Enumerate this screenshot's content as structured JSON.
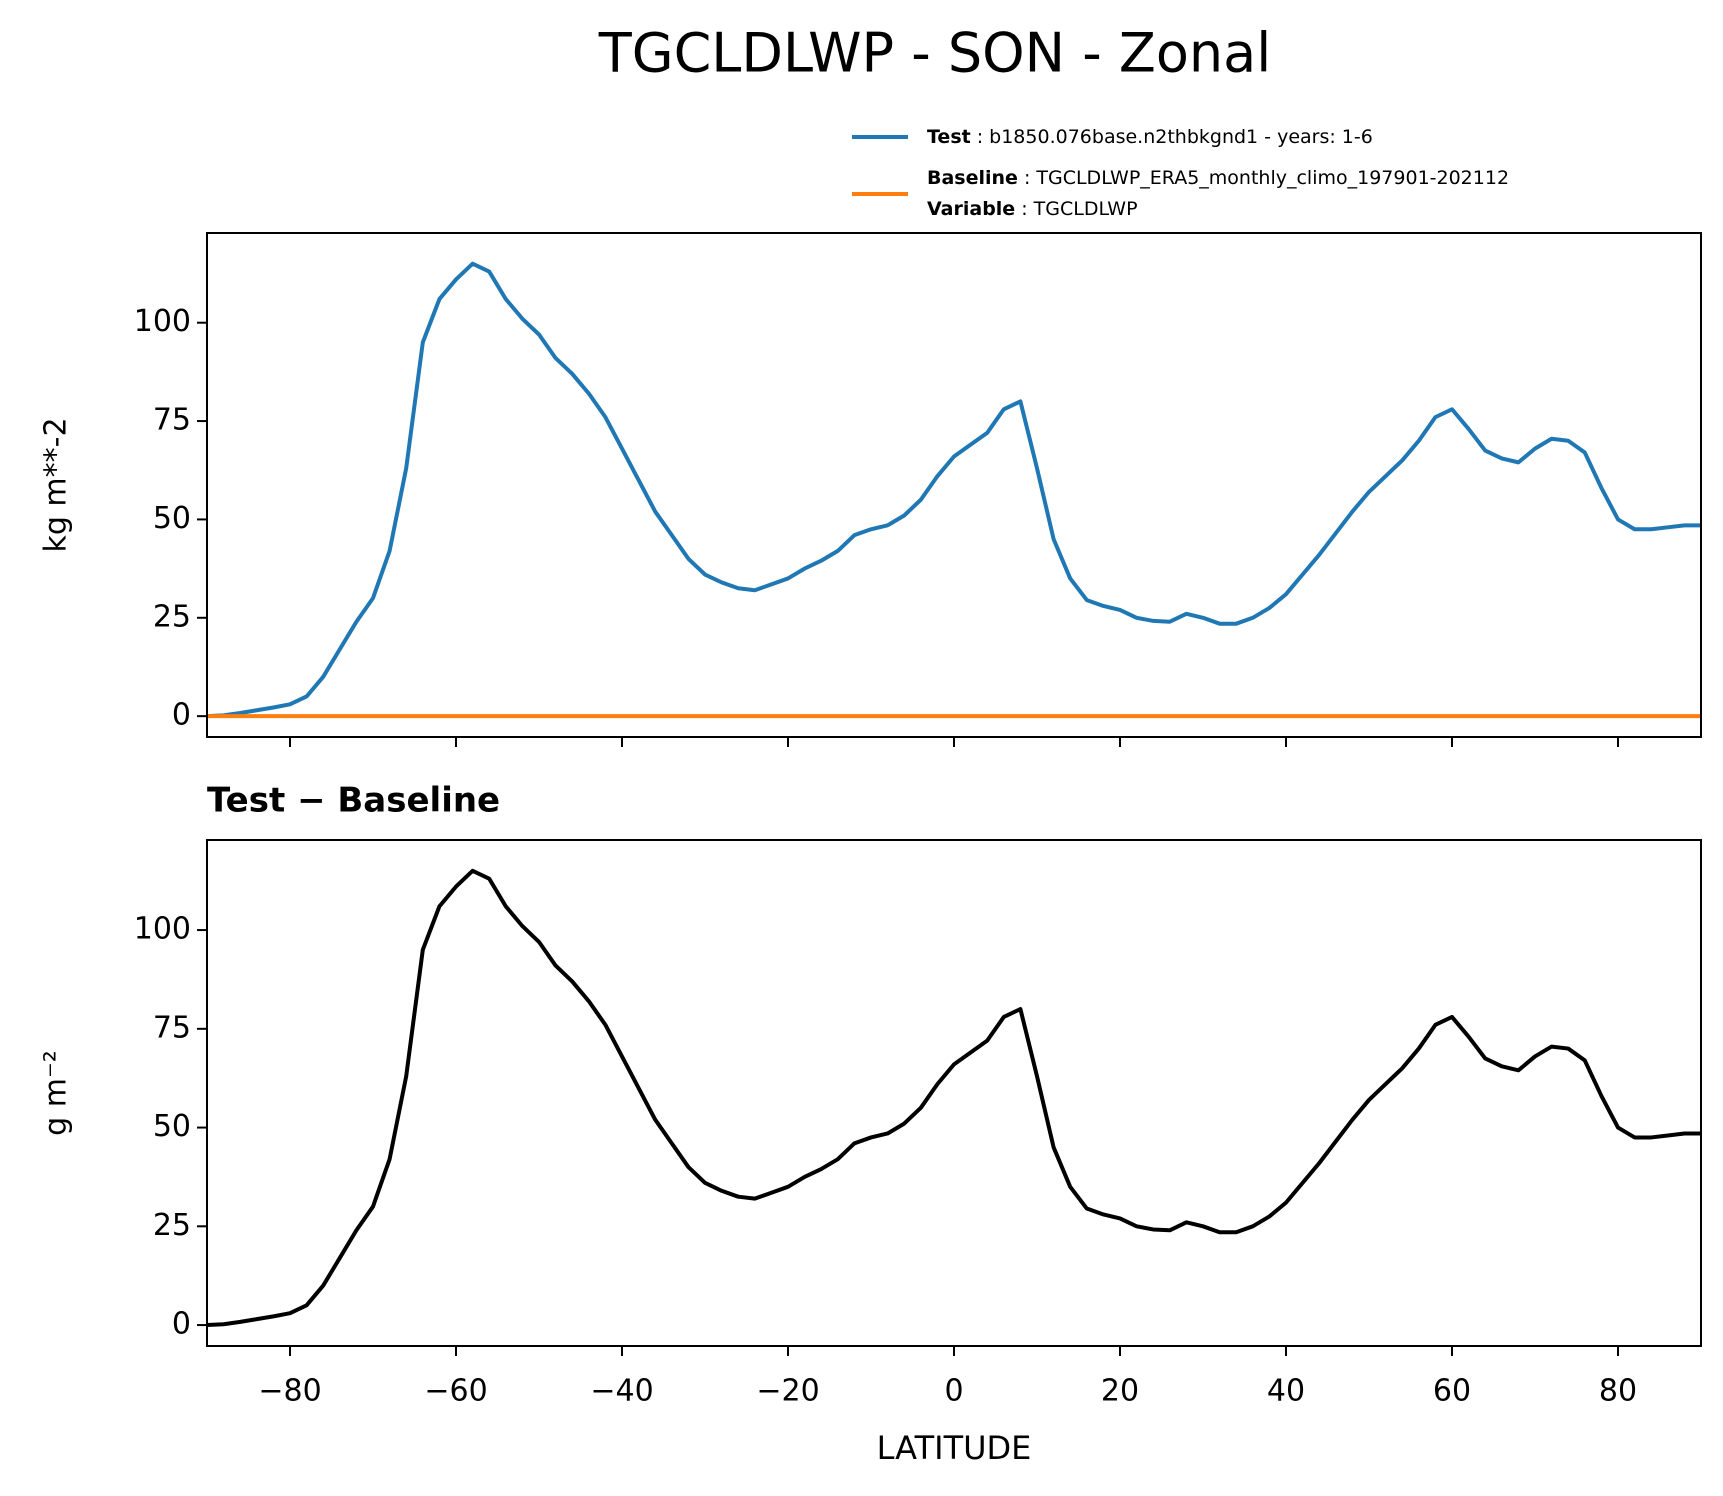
{
  "chart_data": [
    {
      "type": "line",
      "title": "TGCLDLWP - SON - Zonal",
      "ylabel": "kg m**-2",
      "x": [
        -90,
        -88,
        -86,
        -84,
        -82,
        -80,
        -78,
        -76,
        -74,
        -72,
        -70,
        -68,
        -66,
        -64,
        -62,
        -60,
        -58,
        -56,
        -54,
        -52,
        -50,
        -48,
        -46,
        -44,
        -42,
        -40,
        -38,
        -36,
        -34,
        -32,
        -30,
        -28,
        -26,
        -24,
        -22,
        -20,
        -18,
        -16,
        -14,
        -12,
        -10,
        -8,
        -6,
        -4,
        -2,
        0,
        2,
        4,
        6,
        8,
        10,
        12,
        14,
        16,
        18,
        20,
        22,
        24,
        26,
        28,
        30,
        32,
        34,
        36,
        38,
        40,
        42,
        44,
        46,
        48,
        50,
        52,
        54,
        56,
        58,
        60,
        62,
        64,
        66,
        68,
        70,
        72,
        74,
        76,
        78,
        80,
        82,
        84,
        86,
        88,
        90
      ],
      "series": [
        {
          "name": "Test",
          "legend_text": ": b1850.076base.n2thbkgnd1 - years: 1-6",
          "color": "#1f77b4",
          "values": [
            0,
            0.2,
            0.8,
            1.5,
            2.2,
            3,
            5,
            10,
            17,
            24,
            30,
            42,
            63,
            95,
            106,
            111,
            115,
            113,
            106,
            101,
            97,
            91,
            87,
            82,
            76,
            68,
            60,
            52,
            46,
            40,
            36,
            34,
            32.5,
            32,
            33.5,
            35,
            37.5,
            39.5,
            42,
            46,
            47.5,
            48.5,
            51,
            55,
            61,
            66,
            69,
            72,
            78,
            80,
            63,
            45,
            35,
            29.5,
            28,
            27,
            25,
            24.2,
            24,
            26,
            25,
            23.5,
            23.5,
            25,
            27.5,
            31,
            36,
            41,
            46.5,
            52,
            57,
            61,
            65,
            70,
            76,
            78,
            73,
            67.5,
            65.5,
            64.5,
            68,
            70.5,
            70,
            67,
            58,
            50,
            47.5,
            47.5,
            48,
            48.5,
            48.5
          ]
        },
        {
          "name": "Baseline",
          "legend_text": ": TGCLDLWP_ERA5_monthly_climo_197901-202112",
          "color": "#ff7f0e",
          "values": [
            0,
            0,
            0,
            0,
            0,
            0,
            0,
            0,
            0,
            0,
            0,
            0,
            0,
            0,
            0,
            0,
            0,
            0,
            0,
            0,
            0,
            0,
            0,
            0,
            0,
            0,
            0,
            0,
            0,
            0,
            0,
            0,
            0,
            0,
            0,
            0,
            0,
            0,
            0,
            0,
            0,
            0,
            0,
            0,
            0,
            0,
            0,
            0,
            0,
            0,
            0,
            0,
            0,
            0,
            0,
            0,
            0,
            0,
            0,
            0,
            0,
            0,
            0,
            0,
            0,
            0,
            0,
            0,
            0,
            0,
            0,
            0,
            0,
            0,
            0,
            0,
            0,
            0,
            0,
            0,
            0,
            0,
            0,
            0,
            0,
            0,
            0,
            0,
            0,
            0,
            0
          ]
        }
      ],
      "variable_label": "Variable",
      "variable_text": ": TGCLDLWP",
      "xlim": [
        -90,
        90
      ],
      "xticks": [
        -80,
        -60,
        -40,
        -20,
        0,
        20,
        40,
        60,
        80
      ],
      "ylim": [
        -5.3,
        122.8
      ],
      "yticks": [
        0,
        25,
        50,
        75,
        100
      ]
    },
    {
      "type": "line",
      "title": "Test − Baseline",
      "ylabel": "g m⁻²",
      "xlabel": "LATITUDE",
      "x": [
        -90,
        -88,
        -86,
        -84,
        -82,
        -80,
        -78,
        -76,
        -74,
        -72,
        -70,
        -68,
        -66,
        -64,
        -62,
        -60,
        -58,
        -56,
        -54,
        -52,
        -50,
        -48,
        -46,
        -44,
        -42,
        -40,
        -38,
        -36,
        -34,
        -32,
        -30,
        -28,
        -26,
        -24,
        -22,
        -20,
        -18,
        -16,
        -14,
        -12,
        -10,
        -8,
        -6,
        -4,
        -2,
        0,
        2,
        4,
        6,
        8,
        10,
        12,
        14,
        16,
        18,
        20,
        22,
        24,
        26,
        28,
        30,
        32,
        34,
        36,
        38,
        40,
        42,
        44,
        46,
        48,
        50,
        52,
        54,
        56,
        58,
        60,
        62,
        64,
        66,
        68,
        70,
        72,
        74,
        76,
        78,
        80,
        82,
        84,
        86,
        88,
        90
      ],
      "series": [
        {
          "color": "#000000",
          "values": [
            0,
            0.2,
            0.8,
            1.5,
            2.2,
            3,
            5,
            10,
            17,
            24,
            30,
            42,
            63,
            95,
            106,
            111,
            115,
            113,
            106,
            101,
            97,
            91,
            87,
            82,
            76,
            68,
            60,
            52,
            46,
            40,
            36,
            34,
            32.5,
            32,
            33.5,
            35,
            37.5,
            39.5,
            42,
            46,
            47.5,
            48.5,
            51,
            55,
            61,
            66,
            69,
            72,
            78,
            80,
            63,
            45,
            35,
            29.5,
            28,
            27,
            25,
            24.2,
            24,
            26,
            25,
            23.5,
            23.5,
            25,
            27.5,
            31,
            36,
            41,
            46.5,
            52,
            57,
            61,
            65,
            70,
            76,
            78,
            73,
            67.5,
            65.5,
            64.5,
            68,
            70.5,
            70,
            67,
            58,
            50,
            47.5,
            47.5,
            48,
            48.5,
            48.5
          ]
        }
      ],
      "xlim": [
        -90,
        90
      ],
      "xticks": [
        {
          "value": -80,
          "label": "−80"
        },
        {
          "value": -60,
          "label": "−60"
        },
        {
          "value": -40,
          "label": "−40"
        },
        {
          "value": -20,
          "label": "−20"
        },
        0,
        20,
        40,
        60,
        80
      ],
      "ylim": [
        -5.3,
        122.8
      ],
      "yticks": [
        0,
        25,
        50,
        75,
        100
      ]
    }
  ]
}
